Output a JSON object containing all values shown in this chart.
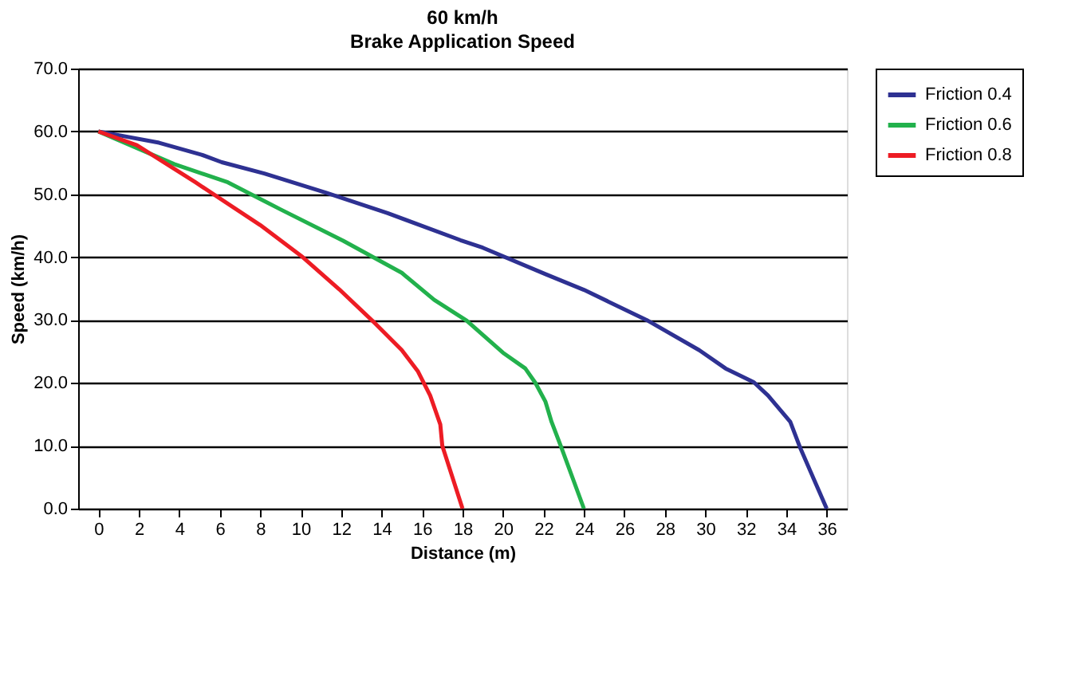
{
  "chart_data": {
    "type": "line",
    "title": "60 km/h",
    "subtitle": "Brake Application Speed",
    "xlabel": "Distance (m)",
    "ylabel": "Speed (km/h)",
    "xlim": [
      -1,
      37
    ],
    "xticks": [
      0,
      2,
      4,
      6,
      8,
      10,
      12,
      14,
      16,
      18,
      20,
      22,
      24,
      26,
      28,
      30,
      32,
      34,
      36
    ],
    "ylim": [
      0,
      70
    ],
    "yticks": [
      {
        "value": 0,
        "label": "0.0"
      },
      {
        "value": 10,
        "label": "10.0"
      },
      {
        "value": 20,
        "label": "20.0"
      },
      {
        "value": 30,
        "label": "30.0"
      },
      {
        "value": 40,
        "label": "40.0"
      },
      {
        "value": 50,
        "label": "50.0"
      },
      {
        "value": 60,
        "label": "60.0"
      },
      {
        "value": 70,
        "label": "70.0"
      }
    ],
    "grid": "y",
    "legend": "right",
    "marker": "none",
    "line_style": "solid",
    "series": [
      {
        "name": "Friction 0.4",
        "color": "#2e3192",
        "x": [
          0,
          3,
          5.1,
          6.1,
          8.2,
          11.3,
          14.3,
          17.9,
          19,
          22.1,
          24,
          27.1,
          29.7,
          31,
          32.4,
          33.1,
          34.2,
          34.7,
          36
        ],
        "values": [
          60,
          58.2,
          56.3,
          55.1,
          53.3,
          50.2,
          47,
          42.7,
          41.5,
          37.3,
          34.8,
          30,
          25.2,
          22.3,
          20.1,
          18,
          13.8,
          9.6,
          0
        ]
      },
      {
        "name": "Friction 0.6",
        "color": "#22b14c",
        "x": [
          0,
          3.75,
          6.4,
          9,
          12.1,
          15,
          16.6,
          18.2,
          20,
          21.1,
          21.6,
          22.1,
          22.4,
          22.9,
          24
        ],
        "values": [
          60,
          54.8,
          51.9,
          47.6,
          42.6,
          37.5,
          33.2,
          29.9,
          24.8,
          22.3,
          20,
          17,
          13.8,
          9.6,
          0
        ]
      },
      {
        "name": "Friction 0.8",
        "color": "#ed1c24",
        "x": [
          0,
          1.9,
          4.8,
          8,
          10.1,
          11.9,
          13.7,
          15,
          15.8,
          16.4,
          16.9,
          17,
          18
        ],
        "values": [
          60,
          57.8,
          51.9,
          45.1,
          40,
          34.9,
          29.4,
          25.2,
          21.8,
          18,
          13.4,
          10,
          0
        ]
      }
    ]
  }
}
